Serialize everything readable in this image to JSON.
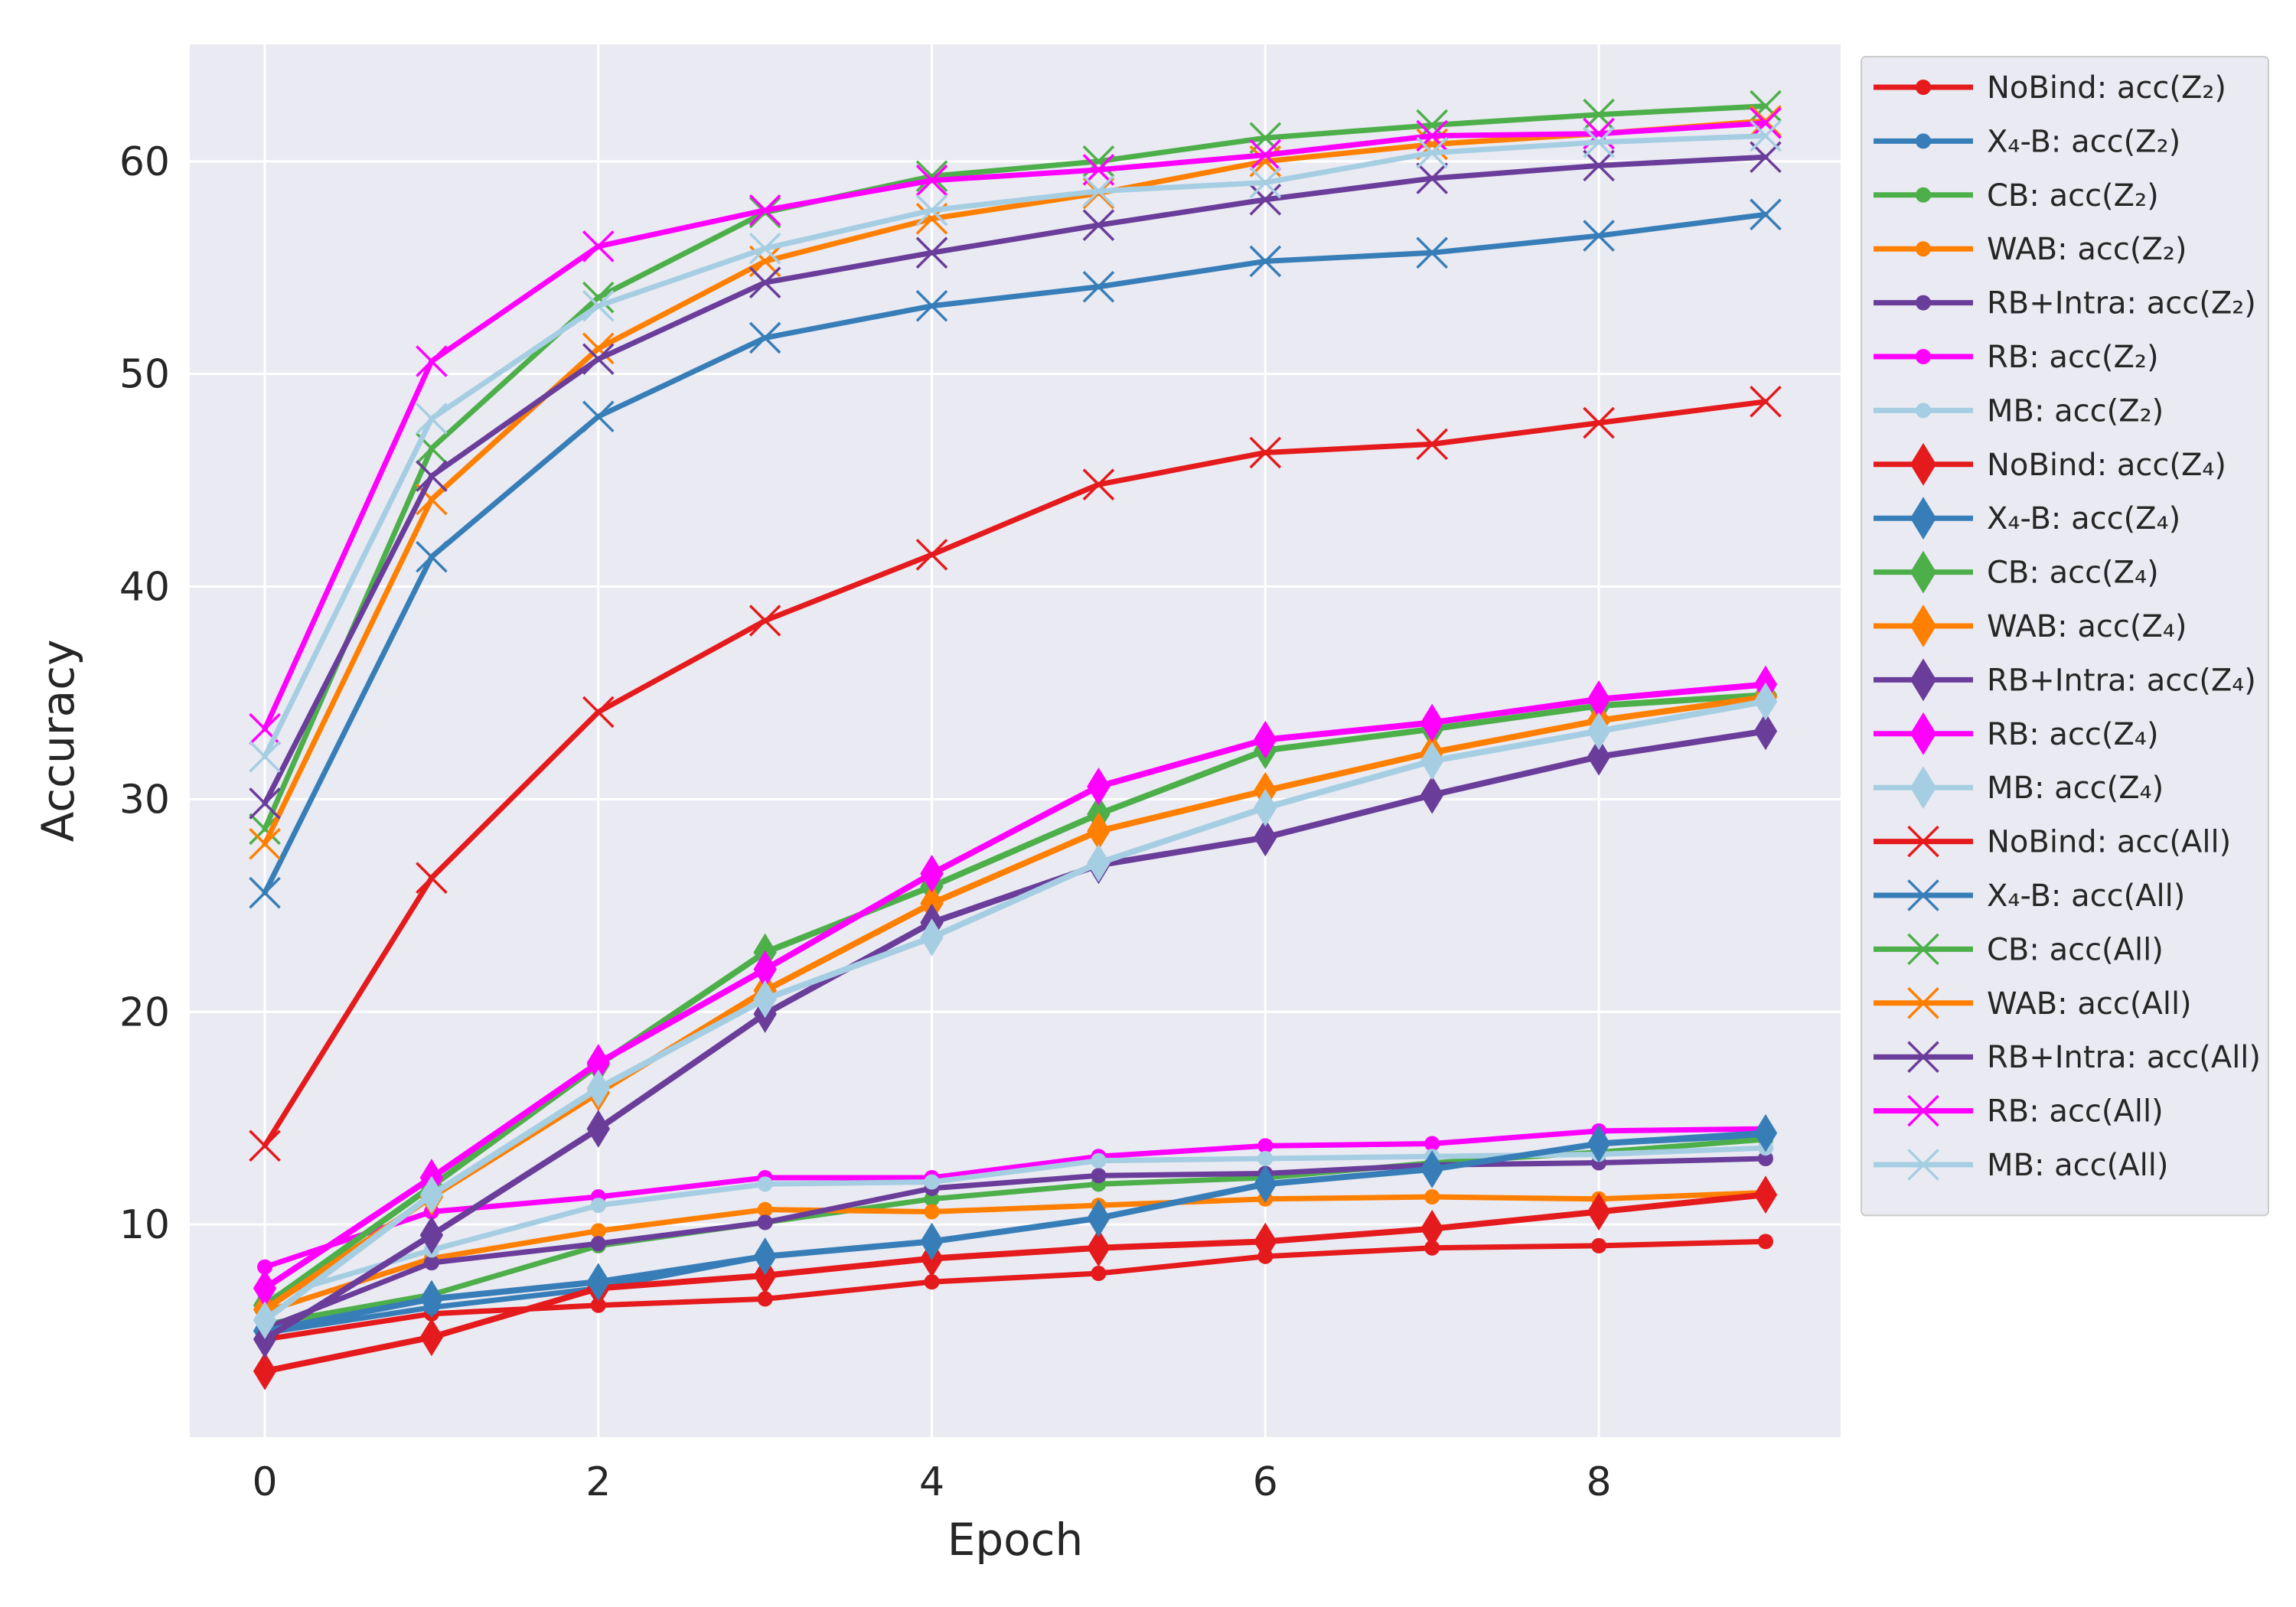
{
  "chart_data": {
    "type": "line",
    "title": "",
    "xlabel": "Epoch",
    "ylabel": "Accuracy",
    "xlim": [
      -0.45,
      9.45
    ],
    "ylim": [
      0,
      65.5
    ],
    "grid": true,
    "legend_position": "outside right",
    "x": [
      0,
      1,
      2,
      3,
      4,
      5,
      6,
      7,
      8,
      9
    ],
    "x_ticks": [
      0,
      2,
      4,
      6,
      8
    ],
    "y_ticks": [
      10,
      20,
      30,
      40,
      50,
      60
    ],
    "series": [
      {
        "name": "NoBind: acc(Z₂)",
        "method": "NoBind",
        "metric": "acc(Z₂)",
        "color": "#e41a1c",
        "marker": "circle",
        "values": [
          4.6,
          5.8,
          6.2,
          6.5,
          7.3,
          7.7,
          8.5,
          8.9,
          9.0,
          9.2
        ]
      },
      {
        "name": "X₄-B: acc(Z₂)",
        "method": "X₄-B",
        "metric": "acc(Z₂)",
        "color": "#377eb8",
        "marker": "circle",
        "values": [
          4.9,
          6.1,
          7.0,
          8.5,
          9.2,
          10.3,
          11.9,
          12.6,
          13.8,
          14.2
        ]
      },
      {
        "name": "CB: acc(Z₂)",
        "method": "CB",
        "metric": "acc(Z₂)",
        "color": "#4daf4a",
        "marker": "circle",
        "values": [
          5.3,
          6.7,
          9.0,
          10.1,
          11.2,
          11.9,
          12.2,
          12.9,
          13.4,
          14.0
        ]
      },
      {
        "name": "WAB: acc(Z₂)",
        "method": "WAB",
        "metric": "acc(Z₂)",
        "color": "#ff7f00",
        "marker": "circle",
        "values": [
          5.9,
          8.4,
          9.7,
          10.7,
          10.6,
          10.9,
          11.2,
          11.3,
          11.2,
          11.5
        ]
      },
      {
        "name": "RB+Intra: acc(Z₂)",
        "method": "RB+Intra",
        "metric": "acc(Z₂)",
        "color": "#6a3d9a",
        "marker": "circle",
        "values": [
          5.1,
          8.2,
          9.1,
          10.1,
          11.7,
          12.3,
          12.4,
          12.8,
          12.9,
          13.1
        ]
      },
      {
        "name": "RB: acc(Z₂)",
        "method": "RB",
        "metric": "acc(Z₂)",
        "color": "#ff00ff",
        "marker": "circle",
        "values": [
          8.0,
          10.6,
          11.3,
          12.2,
          12.2,
          13.2,
          13.7,
          13.8,
          14.4,
          14.5
        ]
      },
      {
        "name": "MB: acc(Z₂)",
        "method": "MB",
        "metric": "acc(Z₂)",
        "color": "#a6cee3",
        "marker": "circle",
        "values": [
          6.5,
          8.8,
          10.9,
          11.9,
          12.0,
          13.0,
          13.1,
          13.2,
          13.3,
          13.6
        ]
      },
      {
        "name": "NoBind: acc(Z₄)",
        "method": "NoBind",
        "metric": "acc(Z₄)",
        "color": "#e41a1c",
        "marker": "diamond",
        "values": [
          3.1,
          4.7,
          7.0,
          7.6,
          8.4,
          8.9,
          9.2,
          9.8,
          10.6,
          11.4
        ]
      },
      {
        "name": "X₄-B: acc(Z₄)",
        "method": "X₄-B",
        "metric": "acc(Z₄)",
        "color": "#377eb8",
        "marker": "diamond",
        "values": [
          5.0,
          6.5,
          7.3,
          8.5,
          9.2,
          10.3,
          11.9,
          12.6,
          13.8,
          14.3
        ]
      },
      {
        "name": "CB: acc(Z₄)",
        "method": "CB",
        "metric": "acc(Z₄)",
        "color": "#4daf4a",
        "marker": "diamond",
        "values": [
          6.2,
          11.8,
          17.5,
          22.8,
          25.9,
          29.3,
          32.3,
          33.3,
          34.4,
          34.9
        ]
      },
      {
        "name": "WAB: acc(Z₄)",
        "method": "WAB",
        "metric": "acc(Z₄)",
        "color": "#ff7f00",
        "marker": "diamond",
        "values": [
          6.0,
          11.3,
          16.2,
          21.0,
          25.1,
          28.5,
          30.4,
          32.2,
          33.7,
          34.8
        ]
      },
      {
        "name": "RB+Intra: acc(Z₄)",
        "method": "RB+Intra",
        "metric": "acc(Z₄)",
        "color": "#6a3d9a",
        "marker": "diamond",
        "values": [
          4.6,
          9.5,
          14.5,
          19.9,
          24.2,
          26.9,
          28.2,
          30.2,
          32.0,
          33.2
        ]
      },
      {
        "name": "RB: acc(Z₄)",
        "method": "RB",
        "metric": "acc(Z₄)",
        "color": "#ff00ff",
        "marker": "diamond",
        "values": [
          7.0,
          12.2,
          17.6,
          22.0,
          26.5,
          30.6,
          32.8,
          33.6,
          34.7,
          35.4
        ]
      },
      {
        "name": "MB: acc(Z₄)",
        "method": "MB",
        "metric": "acc(Z₄)",
        "color": "#a6cee3",
        "marker": "diamond",
        "values": [
          5.5,
          11.4,
          16.4,
          20.6,
          23.5,
          27.0,
          29.6,
          31.8,
          33.2,
          34.6
        ]
      },
      {
        "name": "NoBind: acc(All)",
        "method": "NoBind",
        "metric": "acc(All)",
        "color": "#e41a1c",
        "marker": "x",
        "values": [
          13.7,
          26.3,
          34.1,
          38.4,
          41.5,
          44.8,
          46.3,
          46.7,
          47.7,
          48.7
        ]
      },
      {
        "name": "X₄-B: acc(All)",
        "method": "X₄-B",
        "metric": "acc(All)",
        "color": "#377eb8",
        "marker": "x",
        "values": [
          25.6,
          41.4,
          48.0,
          51.7,
          53.2,
          54.1,
          55.3,
          55.7,
          56.5,
          57.5
        ]
      },
      {
        "name": "CB: acc(All)",
        "method": "CB",
        "metric": "acc(All)",
        "color": "#4daf4a",
        "marker": "x",
        "values": [
          28.6,
          46.5,
          53.6,
          57.6,
          59.3,
          60.0,
          61.1,
          61.7,
          62.2,
          62.6
        ]
      },
      {
        "name": "WAB: acc(All)",
        "method": "WAB",
        "metric": "acc(All)",
        "color": "#ff7f00",
        "marker": "x",
        "values": [
          27.9,
          44.1,
          51.2,
          55.3,
          57.3,
          58.5,
          60.0,
          60.8,
          61.3,
          61.9
        ]
      },
      {
        "name": "RB+Intra: acc(All)",
        "method": "RB+Intra",
        "metric": "acc(All)",
        "color": "#6a3d9a",
        "marker": "x",
        "values": [
          29.8,
          45.2,
          50.7,
          54.3,
          55.7,
          57.0,
          58.2,
          59.2,
          59.8,
          60.2
        ]
      },
      {
        "name": "RB: acc(All)",
        "method": "RB",
        "metric": "acc(All)",
        "color": "#ff00ff",
        "marker": "x",
        "values": [
          33.3,
          50.6,
          56.0,
          57.7,
          59.1,
          59.6,
          60.3,
          61.2,
          61.3,
          61.8
        ]
      },
      {
        "name": "MB: acc(All)",
        "method": "MB",
        "metric": "acc(All)",
        "color": "#a6cee3",
        "marker": "x",
        "values": [
          32.0,
          47.9,
          53.2,
          55.9,
          57.7,
          58.6,
          59.0,
          60.4,
          60.9,
          61.2
        ]
      }
    ]
  }
}
